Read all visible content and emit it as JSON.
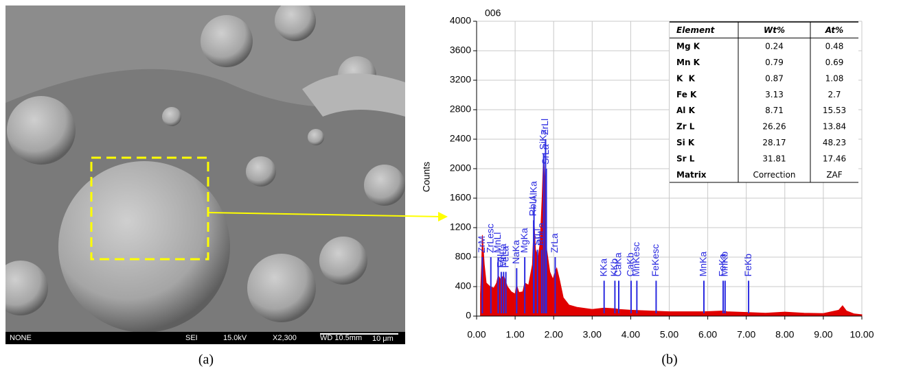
{
  "figure_labels": {
    "a": "(a)",
    "b": "(b)"
  },
  "sem_image": {
    "info_bar": [
      "NONE",
      "SEI",
      "15.0kV",
      "X2,300",
      "WD 10.5mm",
      "10 μm"
    ]
  },
  "chart_data": {
    "type": "area",
    "title": "006",
    "y_label": "Counts",
    "color": "#e00000",
    "grid": true,
    "xlim": [
      0,
      10
    ],
    "ylim": [
      0,
      4000
    ],
    "xticks": [
      {
        "value": 0,
        "label": "0.00"
      },
      {
        "value": 1,
        "label": "1.00"
      },
      {
        "value": 2,
        "label": "2.00"
      },
      {
        "value": 3,
        "label": "3.00"
      },
      {
        "value": 4,
        "label": "4.00"
      },
      {
        "value": 5,
        "label": "5.00"
      },
      {
        "value": 6,
        "label": "6.00"
      },
      {
        "value": 7,
        "label": "7.00"
      },
      {
        "value": 8,
        "label": "8.00"
      },
      {
        "value": 9,
        "label": "9.00"
      },
      {
        "value": 10,
        "label": "10.00"
      }
    ],
    "yticks": [
      0,
      400,
      800,
      1200,
      1600,
      2000,
      2400,
      2800,
      3200,
      3600,
      4000
    ],
    "x": [
      0.1,
      0.13,
      0.15,
      0.2,
      0.25,
      0.35,
      0.45,
      0.52,
      0.56,
      0.62,
      0.7,
      0.8,
      0.9,
      1.0,
      1.04,
      1.1,
      1.2,
      1.25,
      1.35,
      1.45,
      1.49,
      1.53,
      1.6,
      1.65,
      1.7,
      1.74,
      1.78,
      1.82,
      1.9,
      1.98,
      2.04,
      2.08,
      2.15,
      2.25,
      2.4,
      2.6,
      3.0,
      3.31,
      3.6,
      3.7,
      4.0,
      4.5,
      5.0,
      5.9,
      6.4,
      6.5,
      7.0,
      7.5,
      8.0,
      8.5,
      9.0,
      9.4,
      9.5,
      9.6,
      9.8,
      10.0
    ],
    "values": [
      300,
      700,
      1100,
      700,
      450,
      400,
      380,
      450,
      550,
      500,
      550,
      400,
      330,
      300,
      420,
      320,
      330,
      450,
      420,
      700,
      1300,
      900,
      800,
      1000,
      1600,
      2200,
      1700,
      900,
      600,
      500,
      600,
      650,
      500,
      250,
      150,
      120,
      90,
      110,
      100,
      90,
      80,
      70,
      60,
      60,
      70,
      60,
      50,
      40,
      55,
      40,
      35,
      80,
      140,
      70,
      30,
      20
    ],
    "peak_labels": [
      {
        "label": "ZrM",
        "x": 0.15,
        "top": 800
      },
      {
        "label": "ZrLesc",
        "x": 0.37,
        "top": 800
      },
      {
        "label": "MnLl",
        "x": 0.56,
        "top": 800
      },
      {
        "label": "FeLl",
        "x": 0.64,
        "top": 600
      },
      {
        "label": "MnLa",
        "x": 0.7,
        "top": 600
      },
      {
        "label": "FeLa",
        "x": 0.76,
        "top": 600
      },
      {
        "label": "NaKa",
        "x": 1.04,
        "top": 650
      },
      {
        "label": "MgKa",
        "x": 1.25,
        "top": 800
      },
      {
        "label": "RbLl",
        "x": 1.48,
        "top": 1300
      },
      {
        "label": "SrLl",
        "x": 1.58,
        "top": 900
      },
      {
        "label": "AlKa",
        "x": 1.49,
        "top": 1500
      },
      {
        "label": "RbLa",
        "x": 1.69,
        "top": 900
      },
      {
        "label": "SiKa",
        "x": 1.74,
        "top": 2200
      },
      {
        "label": "ZrLl",
        "x": 1.79,
        "top": 2400
      },
      {
        "label": "SrLa",
        "x": 1.81,
        "top": 2000
      },
      {
        "label": "ZrLa",
        "x": 2.04,
        "top": 800
      },
      {
        "label": "KKa",
        "x": 3.31,
        "top": 480
      },
      {
        "label": "KKb",
        "x": 3.59,
        "top": 480
      },
      {
        "label": "CaKa",
        "x": 3.69,
        "top": 480
      },
      {
        "label": "CaKb",
        "x": 4.01,
        "top": 480
      },
      {
        "label": "MnKesc",
        "x": 4.16,
        "top": 480
      },
      {
        "label": "FeKesc",
        "x": 4.66,
        "top": 480
      },
      {
        "label": "MnKa",
        "x": 5.9,
        "top": 480
      },
      {
        "label": "MnKb",
        "x": 6.45,
        "top": 480
      },
      {
        "label": "FeKa",
        "x": 6.4,
        "top": 480
      },
      {
        "label": "FeKb",
        "x": 7.06,
        "top": 480
      }
    ],
    "table": {
      "header": [
        "Element",
        "Wt%",
        "At%"
      ],
      "rows": [
        [
          "Mg K",
          0.24,
          0.48
        ],
        [
          "Mn K",
          0.79,
          0.69
        ],
        [
          "K  K",
          0.87,
          1.08
        ],
        [
          "Fe K",
          3.13,
          2.7
        ],
        [
          "Al K",
          8.71,
          15.53
        ],
        [
          "Zr L",
          26.26,
          13.84
        ],
        [
          "Si K",
          28.17,
          48.23
        ],
        [
          "Sr L",
          31.81,
          17.46
        ],
        [
          "Matrix",
          "Correction",
          "ZAF"
        ]
      ]
    }
  }
}
